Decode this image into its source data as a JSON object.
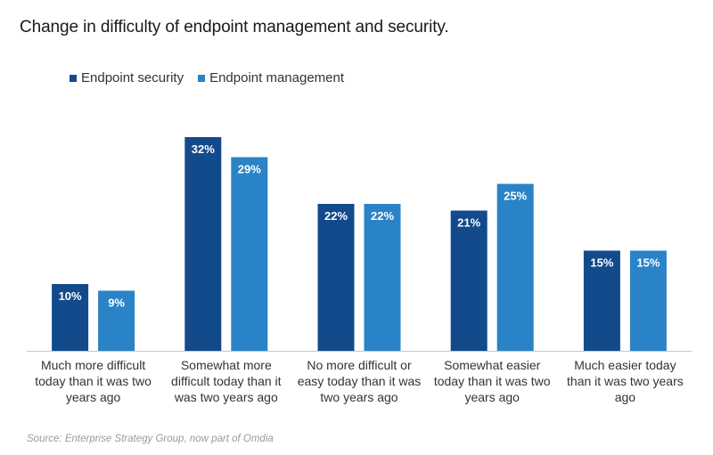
{
  "title": "Change in difficulty of endpoint management and security.",
  "source": "Source: Enterprise Strategy Group, now part of Omdia",
  "colors": {
    "endpoint_security": "#124a8c",
    "endpoint_management": "#2a83c6"
  },
  "chart_data": {
    "type": "bar",
    "title": "Change in difficulty of endpoint management and security.",
    "categories": [
      "Much more difficult today than it was two years ago",
      "Somewhat more difficult today than it was two years ago",
      "No more difficult or easy today than it was two years ago",
      "Somewhat easier today than it was two years ago",
      "Much easier today than it was two years ago"
    ],
    "category_lines": [
      [
        "Much more difficult",
        "today than it was two",
        "years ago"
      ],
      [
        "Somewhat more",
        "difficult today than it",
        "was two years ago"
      ],
      [
        "No more difficult or",
        "easy today than it was",
        "two years ago"
      ],
      [
        "Somewhat easier",
        "today than it was two",
        "years ago"
      ],
      [
        "Much easier today",
        "than it was two years",
        "ago"
      ]
    ],
    "series": [
      {
        "name": "Endpoint security",
        "values": [
          10,
          32,
          22,
          21,
          15
        ],
        "labels": [
          "10%",
          "32%",
          "22%",
          "21%",
          "15%"
        ]
      },
      {
        "name": "Endpoint management",
        "values": [
          9,
          29,
          22,
          25,
          15
        ],
        "labels": [
          "9%",
          "29%",
          "22%",
          "25%",
          "15%"
        ]
      }
    ],
    "ylim": [
      0,
      35
    ],
    "grid": false,
    "legend_position": "top-left"
  }
}
